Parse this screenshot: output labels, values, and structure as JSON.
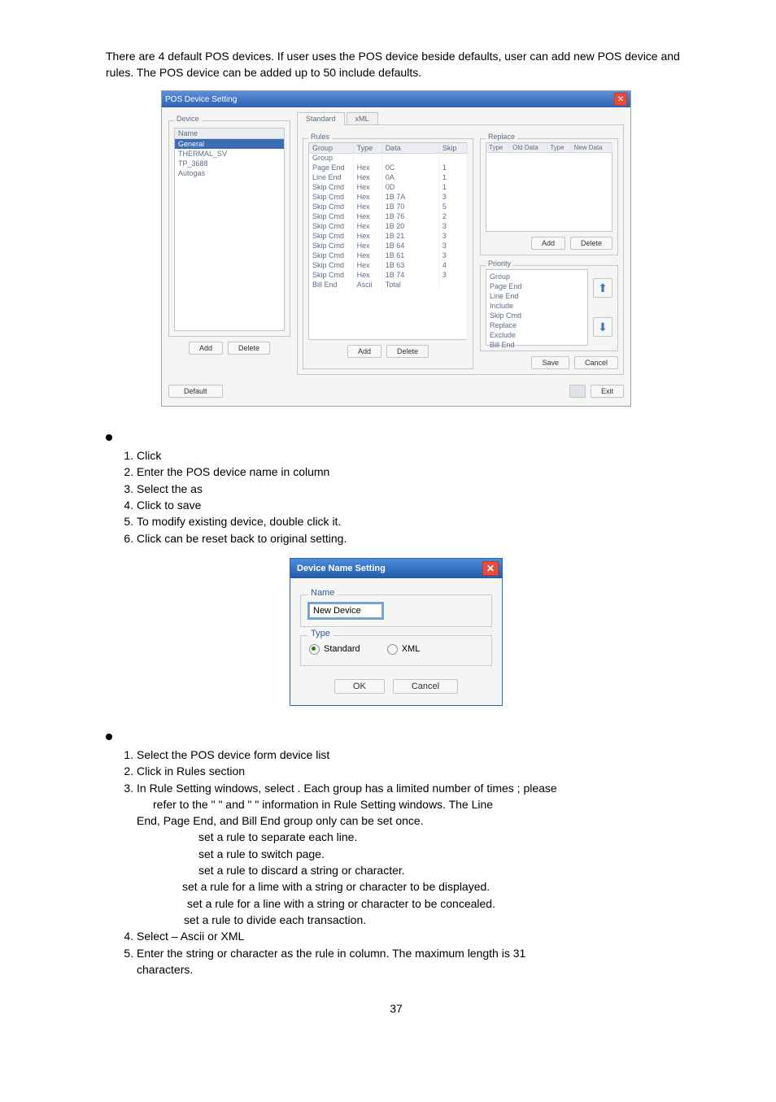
{
  "doc": {
    "intro": "There are 4 default POS devices. If user uses the POS device beside defaults, user can add new POS device and rules. The POS device can be added up to 50 include defaults.",
    "page_number": "37"
  },
  "dlg1": {
    "title": "POS Device Setting",
    "device_section": "Device",
    "device_name_hdr": "Name",
    "devices": [
      "General",
      "THERMAL_SV",
      "TP_3688",
      "Autogas"
    ],
    "btn_add": "Add",
    "btn_delete": "Delete",
    "btn_default": "Default",
    "tabs": [
      "Standard",
      "xML"
    ],
    "rules_section": "Rules",
    "rules_headers": [
      "Group",
      "Type",
      "Data",
      "Skip"
    ],
    "rules_rows": [
      [
        "Group",
        "",
        "",
        ""
      ],
      [
        "Page End",
        "Hex",
        "0C",
        "1"
      ],
      [
        "Line End",
        "Hex",
        "0A",
        "1"
      ],
      [
        "Skip Cmd",
        "Hex",
        "0D",
        "1"
      ],
      [
        "Skip Cmd",
        "Hex",
        "1B 7A",
        "3"
      ],
      [
        "Skip Cmd",
        "Hex",
        "1B 70",
        "5"
      ],
      [
        "Skip Cmd",
        "Hex",
        "1B 76",
        "2"
      ],
      [
        "Skip Cmd",
        "Hex",
        "1B 20",
        "3"
      ],
      [
        "Skip Cmd",
        "Hex",
        "1B 21",
        "3"
      ],
      [
        "Skip Cmd",
        "Hex",
        "1B 64",
        "3"
      ],
      [
        "Skip Cmd",
        "Hex",
        "1B 61",
        "3"
      ],
      [
        "Skip Cmd",
        "Hex",
        "1B 63",
        "4"
      ],
      [
        "Skip Cmd",
        "Hex",
        "1B 74",
        "3"
      ],
      [
        "Bill End",
        "Ascii",
        "Total",
        ""
      ]
    ],
    "replace_section": "Replace",
    "replace_headers": [
      "Type",
      "Old Data",
      "Type",
      "New Data"
    ],
    "priority_section": "Priority",
    "priority_items": [
      "Group",
      "Page End",
      "Line End",
      "Include",
      "Skip Cmd",
      "Replace",
      "Exclude",
      "Bill End"
    ],
    "btn_save": "Save",
    "btn_cancel": "Cancel",
    "btn_exit": "Exit"
  },
  "dlg2": {
    "title": "Device Name Setting",
    "name_label": "Name",
    "name_value": "New Device",
    "type_label": "Type",
    "opt_standard": "Standard",
    "opt_xml": "XML",
    "btn_ok": "OK",
    "btn_cancel": "Cancel"
  },
  "lists": {
    "add_heading_steps": [
      "Click",
      "Enter the POS device name in           column",
      "Select the        as",
      "Click        to save",
      "To modify existing device, double click it.",
      "Click             can be reset back to original setting."
    ],
    "set_steps": {
      "s1": "Select the POS device form device list",
      "s2": "Click         in Rules section",
      "s3_main": "In Rule Setting windows, select             . Each group has a limited number of times ; please",
      "s3_cont1": "refer to the \"                 \" and \"                  \" information in Rule Setting windows. The Line",
      "s3_cont2": "End, Page End, and Bill End group only can be set once.",
      "r_line_end": "  set a rule to separate each line.",
      "r_page_end": "   set a rule to switch page.",
      "r_skip_cmd": "   set a rule to discard a string or character.",
      "r_include": " set a rule for a lime with a string or character to be displayed.",
      "r_exclude": "  set a rule for a line with a string or character to be concealed.",
      "r_bill_end": " set a rule to divide each transaction.",
      "s4": "Select          – Ascii or XML",
      "s5_main": "Enter the string or character as the rule in         column. The maximum length is 31",
      "s5_cont": "characters."
    }
  }
}
